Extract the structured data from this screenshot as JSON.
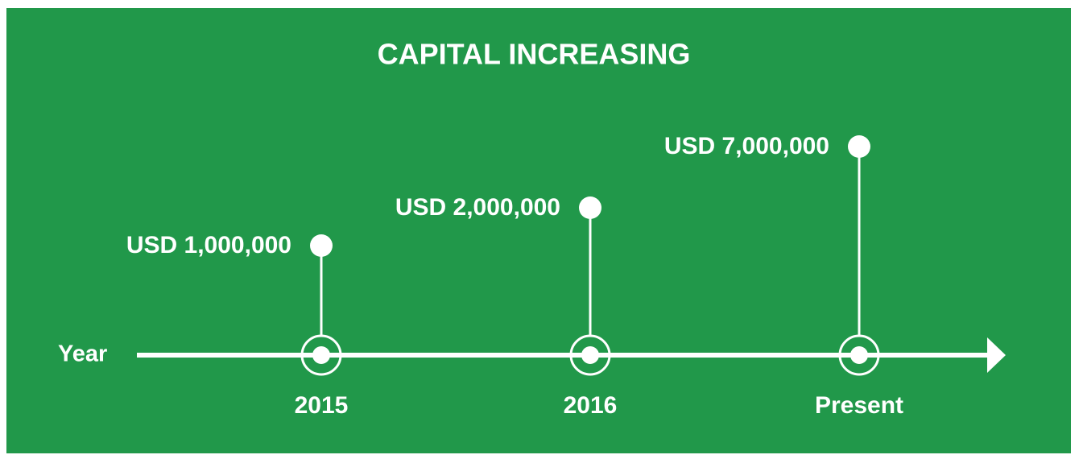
{
  "title": "CAPITAL INCREASING",
  "axis_label": "Year",
  "milestones": [
    {
      "year": "2015",
      "amount": "USD 1,000,000"
    },
    {
      "year": "2016",
      "amount": "USD 2,000,000"
    },
    {
      "year": "Present",
      "amount": "USD 7,000,000"
    }
  ]
}
